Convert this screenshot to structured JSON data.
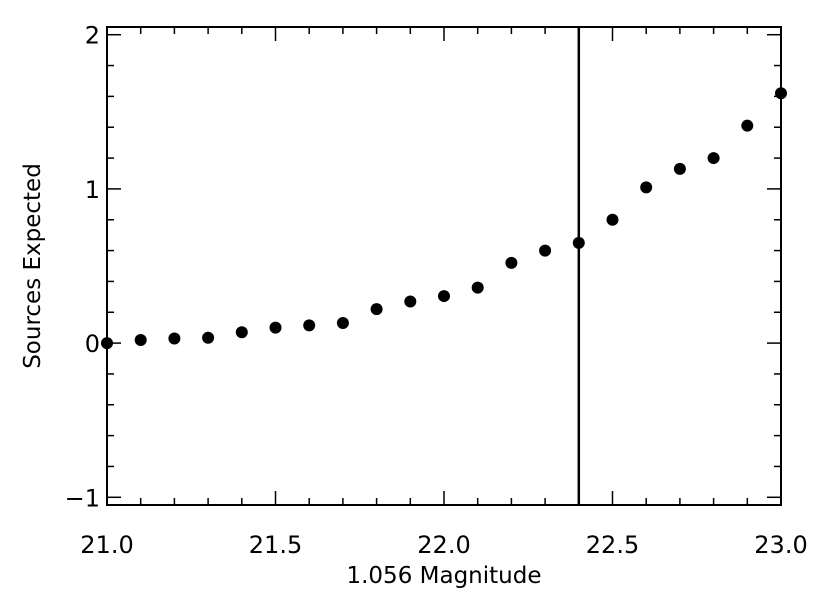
{
  "chart_data": {
    "type": "scatter",
    "title": "",
    "xlabel": "1.056 Magnitude",
    "ylabel": "Sources Expected",
    "xlim": [
      21.0,
      23.0
    ],
    "ylim": [
      -1.05,
      2.05
    ],
    "grid": false,
    "x_ticks": [
      21.0,
      21.5,
      22.0,
      22.5,
      23.0
    ],
    "x_tick_labels": [
      "21.0",
      "21.5",
      "22.0",
      "22.5",
      "23.0"
    ],
    "y_ticks": [
      -1,
      0,
      1,
      2
    ],
    "y_tick_labels": [
      "−1",
      "0",
      "1",
      "2"
    ],
    "vertical_line_x": 22.4,
    "series": [
      {
        "x": [
          21.0,
          21.1,
          21.2,
          21.3,
          21.4,
          21.5,
          21.6,
          21.7,
          21.8,
          21.9,
          22.0,
          22.1,
          22.2,
          22.3,
          22.4,
          22.5,
          22.6,
          22.7,
          22.8,
          22.9,
          23.0
        ],
        "values": [
          0.0,
          0.02,
          0.03,
          0.035,
          0.07,
          0.1,
          0.115,
          0.13,
          0.22,
          0.27,
          0.305,
          0.36,
          0.52,
          0.6,
          0.65,
          0.8,
          1.01,
          1.13,
          1.2,
          1.41,
          1.62
        ]
      }
    ]
  }
}
